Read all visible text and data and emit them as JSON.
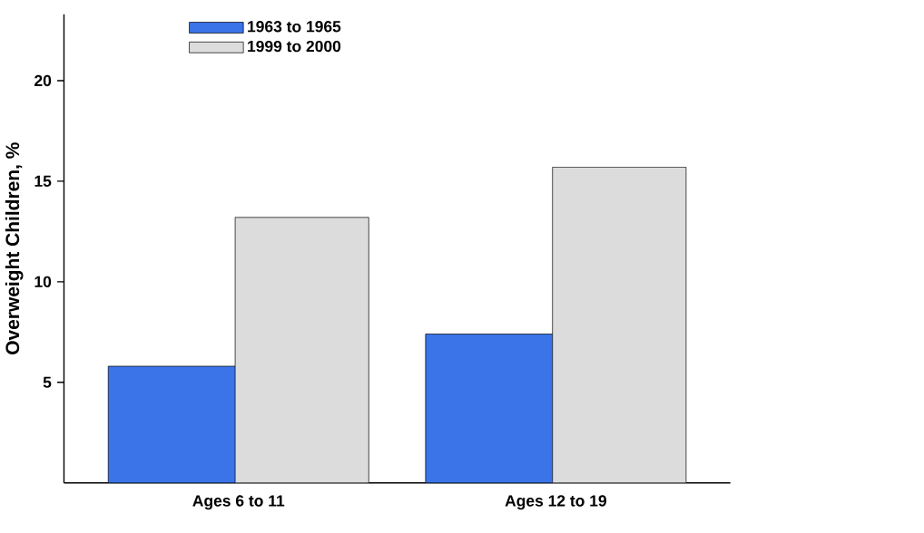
{
  "chart_data": {
    "type": "bar",
    "ylabel": "Overweight Children, %",
    "categories": [
      "Ages 6 to 11",
      "Ages 12 to 19"
    ],
    "series": [
      {
        "name": "1963 to 1965",
        "color": "#3a74e8",
        "values": [
          5.8,
          7.4
        ]
      },
      {
        "name": "1999 to 2000",
        "color": "#dcdcdc",
        "values": [
          13.2,
          15.7
        ]
      }
    ],
    "ylim": [
      0,
      23.3
    ],
    "yticks": [
      5,
      10,
      15,
      20
    ],
    "grid": false,
    "legend": "top"
  }
}
